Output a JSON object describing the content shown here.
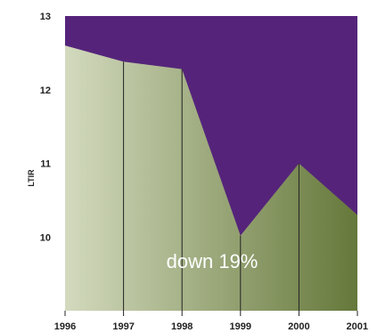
{
  "chart_data": {
    "type": "area",
    "title": "",
    "xlabel": "",
    "ylabel": "LTIR",
    "x": [
      "1996",
      "1997",
      "1998",
      "1999",
      "2000",
      "2001"
    ],
    "values": [
      12.6,
      12.38,
      12.28,
      10.02,
      11.0,
      10.3
    ],
    "ylim": [
      9.0,
      13.0
    ],
    "yticks": [
      10,
      11,
      12,
      13
    ],
    "grid": false,
    "annotation": "down 19%",
    "colors": {
      "background": "#55247a",
      "area_start": "#d3dabe",
      "area_end": "#65783a",
      "line": "#222222"
    }
  }
}
